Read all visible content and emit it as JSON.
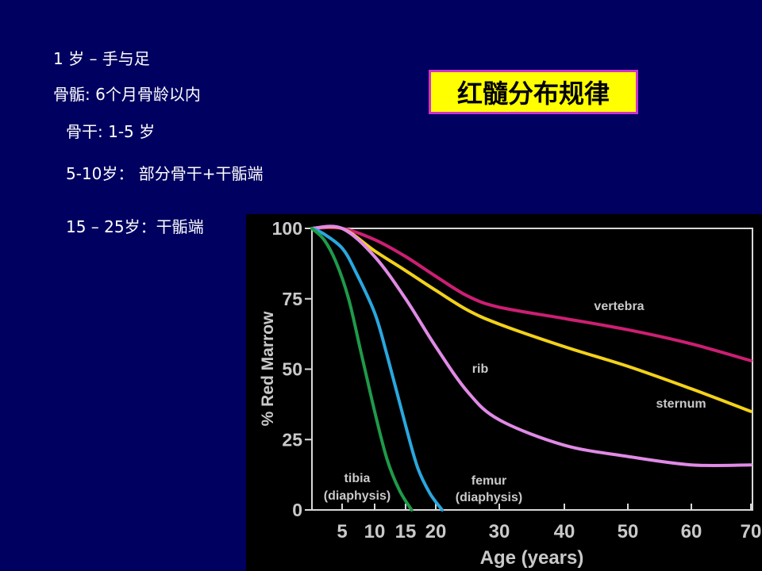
{
  "notes": {
    "line1": "1 岁 – 手与足",
    "line2": "骨骺:  6个月骨龄以内",
    "line3": "骨干: 1-5 岁",
    "line4": "5-10岁：  部分骨干+干骺端",
    "line5": "15 – 25岁：干骺端"
  },
  "title_box": {
    "text": "红髓分布规律",
    "background": "#ffff00",
    "border": "#cc33cc"
  },
  "chart_data": {
    "type": "line",
    "xlabel": "Age (years)",
    "ylabel": "% Red Marrow",
    "xlim": [
      0,
      70
    ],
    "ylim": [
      0,
      100
    ],
    "x_ticks": [
      5,
      10,
      15,
      20,
      30,
      40,
      50,
      60,
      70
    ],
    "x_tick_labels": [
      "5",
      "10",
      "15",
      "20",
      "30",
      "40",
      "50",
      "60",
      "70"
    ],
    "y_ticks": [
      0,
      25,
      50,
      75,
      100
    ],
    "y_tick_labels": [
      "0",
      "25",
      "50",
      "75",
      "100"
    ],
    "x_axis_note": "x axis is non-linear: 0–20 spread wider, 20–70 compressed",
    "grid": false,
    "series": [
      {
        "name": "vertebra",
        "label_lines": [
          "vertebra"
        ],
        "color": "#cc1f73",
        "points": [
          [
            0,
            100
          ],
          [
            5,
            100
          ],
          [
            10,
            96
          ],
          [
            15,
            90
          ],
          [
            20,
            83
          ],
          [
            25,
            76
          ],
          [
            30,
            72
          ],
          [
            40,
            68
          ],
          [
            50,
            64
          ],
          [
            60,
            59
          ],
          [
            70,
            53
          ]
        ]
      },
      {
        "name": "sternum",
        "label_lines": [
          "sternum"
        ],
        "color": "#f2d21a",
        "points": [
          [
            0,
            100
          ],
          [
            5,
            100
          ],
          [
            10,
            92
          ],
          [
            15,
            85
          ],
          [
            20,
            78
          ],
          [
            25,
            71
          ],
          [
            30,
            66
          ],
          [
            40,
            58
          ],
          [
            50,
            51
          ],
          [
            60,
            43
          ],
          [
            70,
            35
          ]
        ]
      },
      {
        "name": "rib",
        "label_lines": [
          "rib"
        ],
        "color": "#e08ae6",
        "points": [
          [
            0,
            100
          ],
          [
            5,
            100
          ],
          [
            10,
            90
          ],
          [
            15,
            75
          ],
          [
            20,
            58
          ],
          [
            25,
            42
          ],
          [
            30,
            32
          ],
          [
            40,
            23
          ],
          [
            50,
            19
          ],
          [
            60,
            16
          ],
          [
            70,
            16
          ]
        ]
      },
      {
        "name": "femur (diaphysis)",
        "label_lines": [
          "femur",
          "(diaphysis)"
        ],
        "color": "#2aa7de",
        "points": [
          [
            0,
            100
          ],
          [
            2,
            98
          ],
          [
            5,
            93
          ],
          [
            7,
            85
          ],
          [
            10,
            70
          ],
          [
            12,
            55
          ],
          [
            15,
            30
          ],
          [
            17,
            15
          ],
          [
            19,
            6
          ],
          [
            21,
            0
          ]
        ]
      },
      {
        "name": "tibia (diaphysis)",
        "label_lines": [
          "tibia",
          "(diaphysis)"
        ],
        "color": "#1f9a4a",
        "points": [
          [
            0,
            100
          ],
          [
            2,
            96
          ],
          [
            4,
            88
          ],
          [
            6,
            75
          ],
          [
            8,
            55
          ],
          [
            10,
            35
          ],
          [
            12,
            18
          ],
          [
            14,
            7
          ],
          [
            16,
            0
          ]
        ]
      }
    ]
  }
}
